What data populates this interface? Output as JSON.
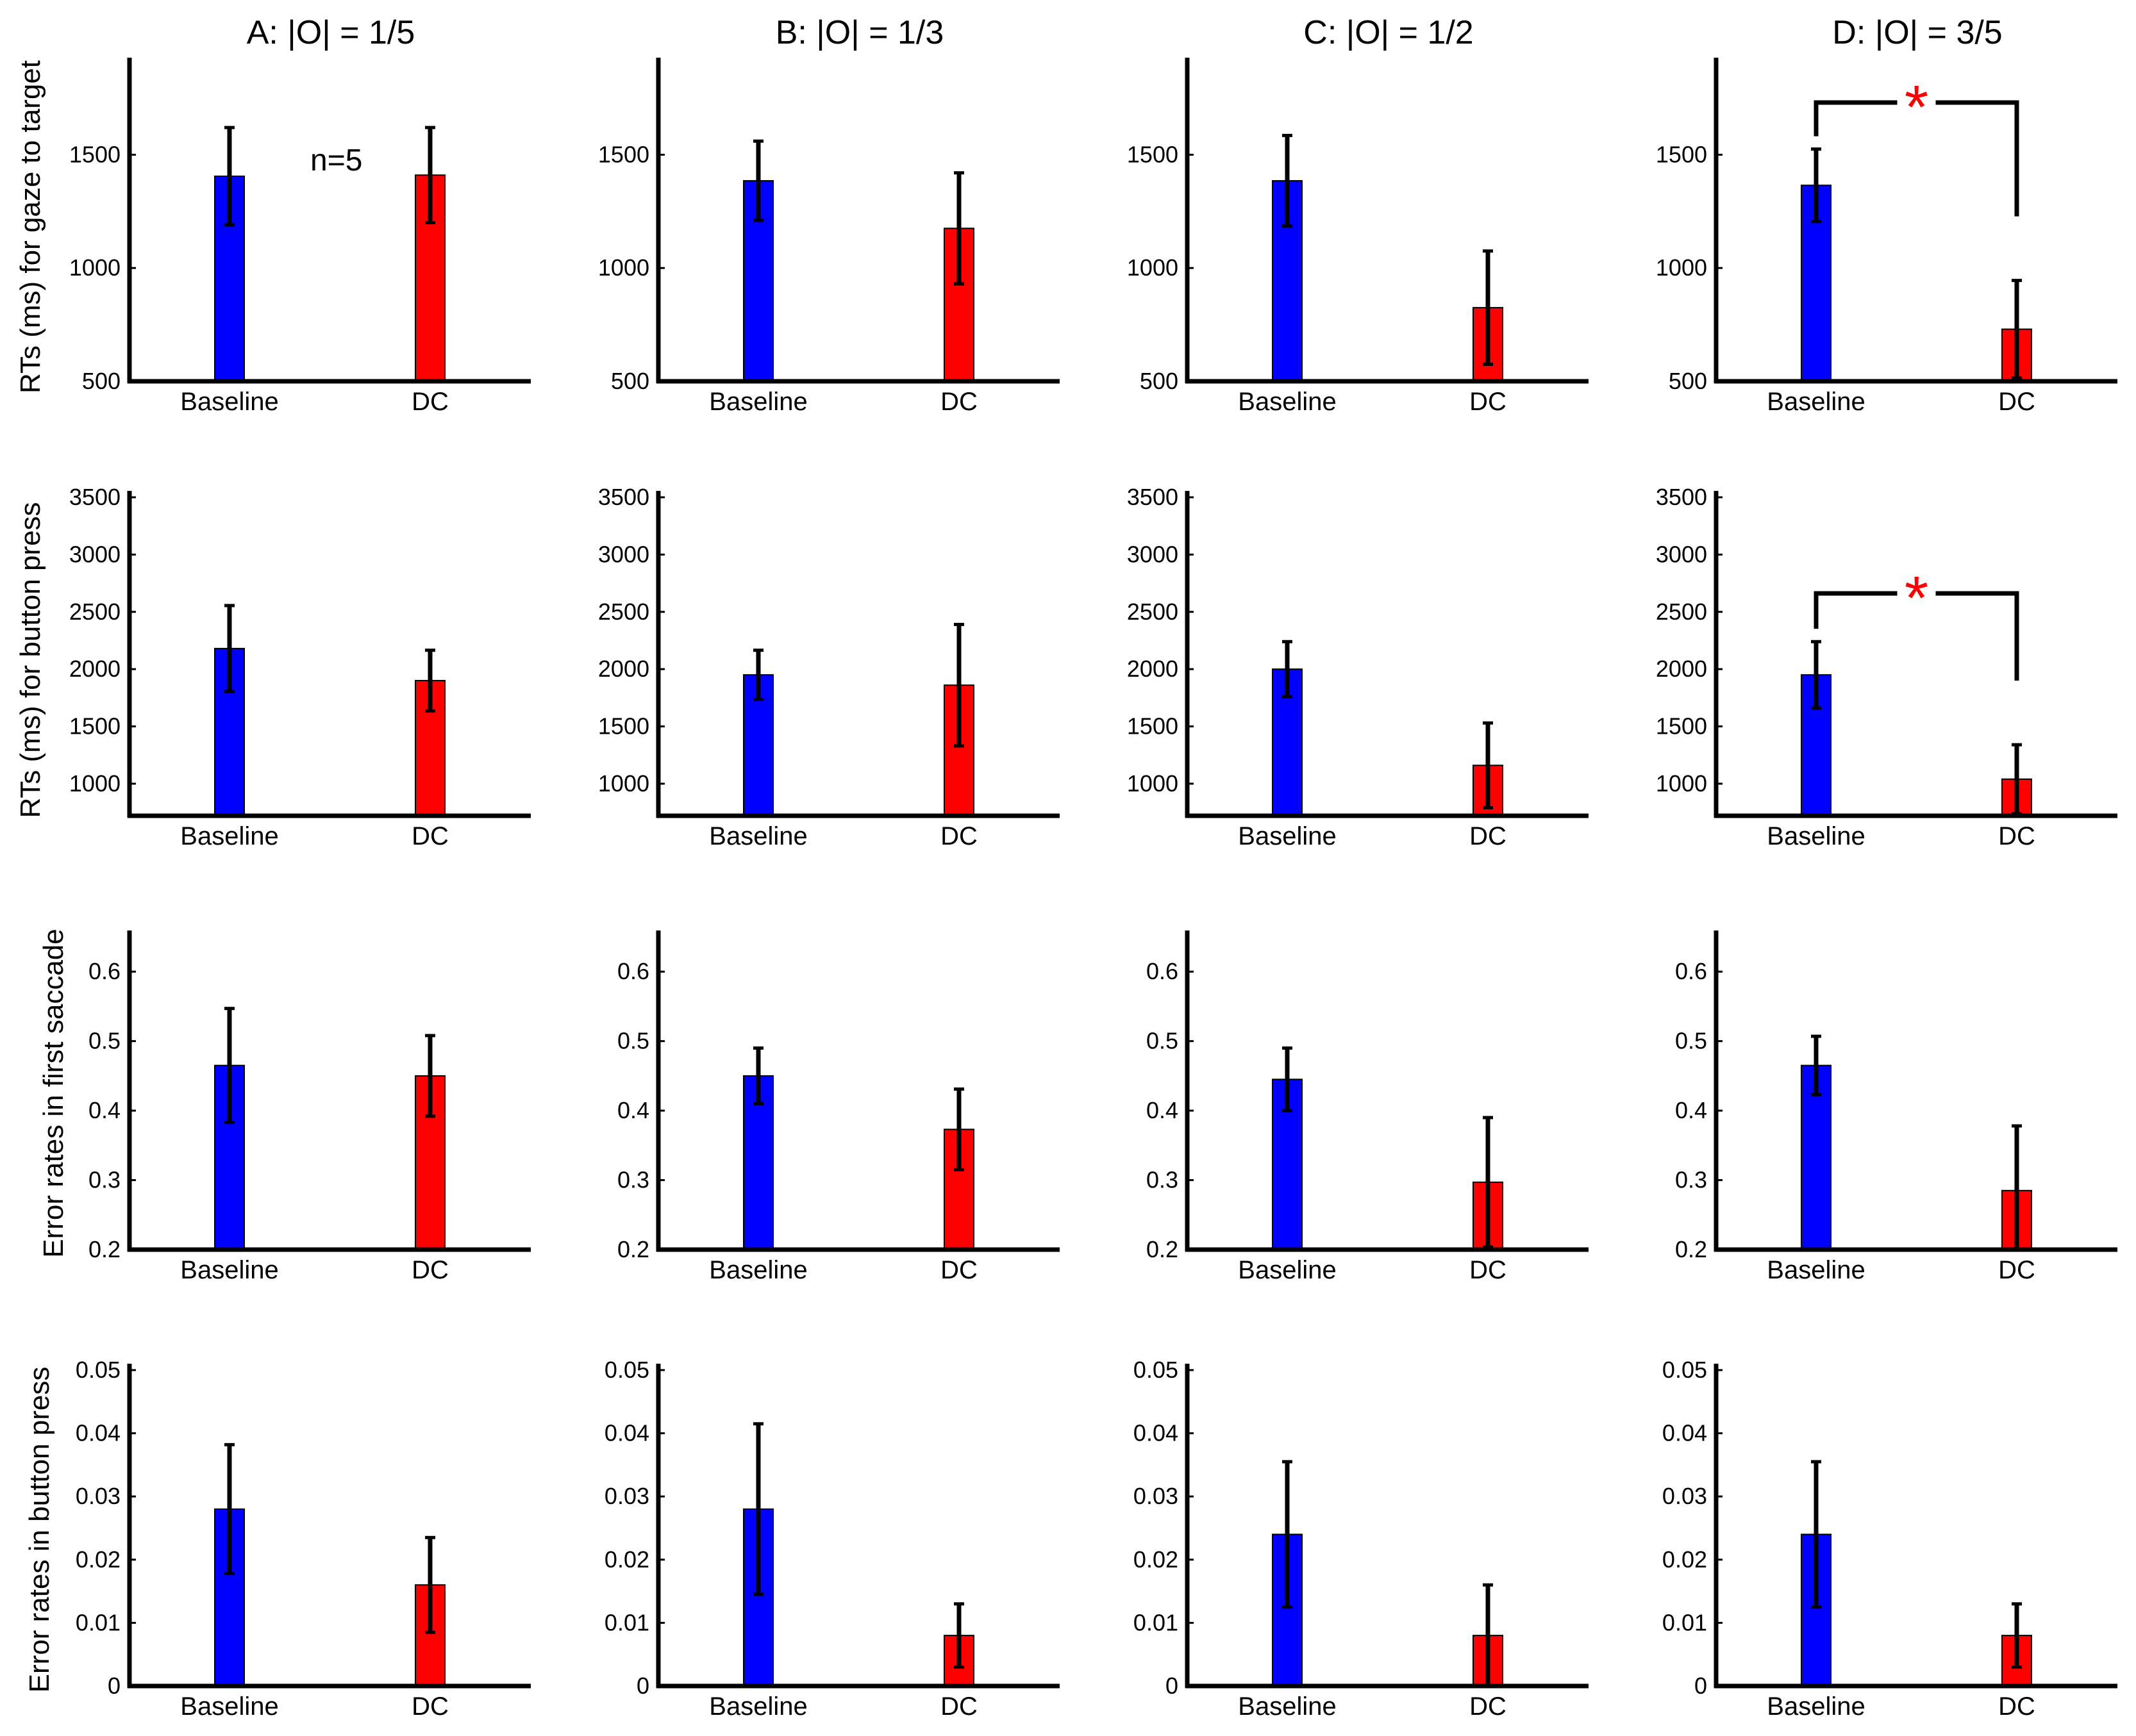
{
  "figure": {
    "column_titles": [
      "A: |O| = 1/5",
      "B: |O| = 1/3",
      "C: |O| = 1/2",
      "D: |O| = 3/5"
    ],
    "row_labels": [
      "RTs (ms) for gaze to target",
      "RTs (ms) for button press",
      "Error rates in first saccade",
      "Error rates in button press"
    ],
    "annotation": "n=5",
    "significance_marker": "*",
    "colors": {
      "baseline": "#0000ff",
      "dc": "#ff0000",
      "axis": "#000000",
      "significance": "#ff0000"
    }
  },
  "chart_data": [
    {
      "type": "bar",
      "row": 0,
      "col": 0,
      "title": "A: |O| = 1/5",
      "ylabel": "RTs (ms) for gaze to target",
      "categories": [
        "Baseline",
        "DC"
      ],
      "values": [
        1405,
        1410
      ],
      "errors": [
        215,
        210
      ],
      "ylim": [
        500,
        1900
      ],
      "yticks": [
        500,
        1000,
        1500
      ],
      "ytick_labels": [
        "500",
        "1000",
        "1500"
      ],
      "significant": false
    },
    {
      "type": "bar",
      "row": 0,
      "col": 1,
      "title": "B: |O| = 1/3",
      "ylabel": "RTs (ms) for gaze to target",
      "categories": [
        "Baseline",
        "DC"
      ],
      "values": [
        1385,
        1175
      ],
      "errors": [
        175,
        245
      ],
      "ylim": [
        500,
        1900
      ],
      "yticks": [
        500,
        1000,
        1500
      ],
      "ytick_labels": [
        "500",
        "1000",
        "1500"
      ],
      "significant": false
    },
    {
      "type": "bar",
      "row": 0,
      "col": 2,
      "title": "C: |O| = 1/2",
      "ylabel": "RTs (ms) for gaze to target",
      "categories": [
        "Baseline",
        "DC"
      ],
      "values": [
        1385,
        825
      ],
      "errors": [
        200,
        250
      ],
      "ylim": [
        500,
        1900
      ],
      "yticks": [
        500,
        1000,
        1500
      ],
      "ytick_labels": [
        "500",
        "1000",
        "1500"
      ],
      "significant": false
    },
    {
      "type": "bar",
      "row": 0,
      "col": 3,
      "title": "D: |O| = 3/5",
      "ylabel": "RTs (ms) for gaze to target",
      "categories": [
        "Baseline",
        "DC"
      ],
      "values": [
        1365,
        730
      ],
      "errors": [
        160,
        215
      ],
      "ylim": [
        500,
        1900
      ],
      "yticks": [
        500,
        1000,
        1500
      ],
      "ytick_labels": [
        "500",
        "1000",
        "1500"
      ],
      "significant": true
    },
    {
      "type": "bar",
      "row": 1,
      "col": 0,
      "title": "A: |O| = 1/5",
      "ylabel": "RTs (ms) for button press",
      "categories": [
        "Baseline",
        "DC"
      ],
      "values": [
        2180,
        1900
      ],
      "errors": [
        375,
        265
      ],
      "ylim": [
        720,
        3500
      ],
      "yticks": [
        1000,
        1500,
        2000,
        2500,
        3000,
        3500
      ],
      "ytick_labels": [
        "1000",
        "1500",
        "2000",
        "2500",
        "3000",
        "3500"
      ],
      "significant": false
    },
    {
      "type": "bar",
      "row": 1,
      "col": 1,
      "title": "B: |O| = 1/3",
      "ylabel": "RTs (ms) for button press",
      "categories": [
        "Baseline",
        "DC"
      ],
      "values": [
        1950,
        1860
      ],
      "errors": [
        215,
        530
      ],
      "ylim": [
        720,
        3500
      ],
      "yticks": [
        1000,
        1500,
        2000,
        2500,
        3000,
        3500
      ],
      "ytick_labels": [
        "1000",
        "1500",
        "2000",
        "2500",
        "3000",
        "3500"
      ],
      "significant": false
    },
    {
      "type": "bar",
      "row": 1,
      "col": 2,
      "title": "C: |O| = 1/2",
      "ylabel": "RTs (ms) for button press",
      "categories": [
        "Baseline",
        "DC"
      ],
      "values": [
        2000,
        1160
      ],
      "errors": [
        240,
        370
      ],
      "ylim": [
        720,
        3500
      ],
      "yticks": [
        1000,
        1500,
        2000,
        2500,
        3000,
        3500
      ],
      "ytick_labels": [
        "1000",
        "1500",
        "2000",
        "2500",
        "3000",
        "3500"
      ],
      "significant": false
    },
    {
      "type": "bar",
      "row": 1,
      "col": 3,
      "title": "D: |O| = 3/5",
      "ylabel": "RTs (ms) for button press",
      "categories": [
        "Baseline",
        "DC"
      ],
      "values": [
        1950,
        1040
      ],
      "errors": [
        290,
        300
      ],
      "ylim": [
        720,
        3500
      ],
      "yticks": [
        1000,
        1500,
        2000,
        2500,
        3000,
        3500
      ],
      "ytick_labels": [
        "1000",
        "1500",
        "2000",
        "2500",
        "3000",
        "3500"
      ],
      "significant": true
    },
    {
      "type": "bar",
      "row": 2,
      "col": 0,
      "title": "A: |O| = 1/5",
      "ylabel": "Error rates in first saccade",
      "categories": [
        "Baseline",
        "DC"
      ],
      "values": [
        0.465,
        0.45
      ],
      "errors": [
        0.082,
        0.058
      ],
      "ylim": [
        0.2,
        0.65
      ],
      "yticks": [
        0.2,
        0.3,
        0.4,
        0.5,
        0.6
      ],
      "ytick_labels": [
        "0.2",
        "0.3",
        "0.4",
        "0.5",
        "0.6"
      ],
      "significant": false
    },
    {
      "type": "bar",
      "row": 2,
      "col": 1,
      "title": "B: |O| = 1/3",
      "ylabel": "Error rates in first saccade",
      "categories": [
        "Baseline",
        "DC"
      ],
      "values": [
        0.45,
        0.373
      ],
      "errors": [
        0.04,
        0.058
      ],
      "ylim": [
        0.2,
        0.65
      ],
      "yticks": [
        0.2,
        0.3,
        0.4,
        0.5,
        0.6
      ],
      "ytick_labels": [
        "0.2",
        "0.3",
        "0.4",
        "0.5",
        "0.6"
      ],
      "significant": false
    },
    {
      "type": "bar",
      "row": 2,
      "col": 2,
      "title": "C: |O| = 1/2",
      "ylabel": "Error rates in first saccade",
      "categories": [
        "Baseline",
        "DC"
      ],
      "values": [
        0.445,
        0.297
      ],
      "errors": [
        0.045,
        0.093
      ],
      "ylim": [
        0.2,
        0.65
      ],
      "yticks": [
        0.2,
        0.3,
        0.4,
        0.5,
        0.6
      ],
      "ytick_labels": [
        "0.2",
        "0.3",
        "0.4",
        "0.5",
        "0.6"
      ],
      "significant": false
    },
    {
      "type": "bar",
      "row": 2,
      "col": 3,
      "title": "D: |O| = 3/5",
      "ylabel": "Error rates in first saccade",
      "categories": [
        "Baseline",
        "DC"
      ],
      "values": [
        0.465,
        0.285
      ],
      "errors": [
        0.042,
        0.093
      ],
      "ylim": [
        0.2,
        0.65
      ],
      "yticks": [
        0.2,
        0.3,
        0.4,
        0.5,
        0.6
      ],
      "ytick_labels": [
        "0.2",
        "0.3",
        "0.4",
        "0.5",
        "0.6"
      ],
      "significant": false
    },
    {
      "type": "bar",
      "row": 3,
      "col": 0,
      "title": "A: |O| = 1/5",
      "ylabel": "Error rates in button press",
      "categories": [
        "Baseline",
        "DC"
      ],
      "values": [
        0.028,
        0.016
      ],
      "errors": [
        0.0102,
        0.0075
      ],
      "ylim": [
        0,
        0.05
      ],
      "yticks": [
        0,
        0.01,
        0.02,
        0.03,
        0.04,
        0.05
      ],
      "ytick_labels": [
        "0",
        "0.01",
        "0.02",
        "0.03",
        "0.04",
        "0.05"
      ],
      "significant": false
    },
    {
      "type": "bar",
      "row": 3,
      "col": 1,
      "title": "B: |O| = 1/3",
      "ylabel": "Error rates in button press",
      "categories": [
        "Baseline",
        "DC"
      ],
      "values": [
        0.028,
        0.008
      ],
      "errors": [
        0.0135,
        0.005
      ],
      "ylim": [
        0,
        0.05
      ],
      "yticks": [
        0,
        0.01,
        0.02,
        0.03,
        0.04,
        0.05
      ],
      "ytick_labels": [
        "0",
        "0.01",
        "0.02",
        "0.03",
        "0.04",
        "0.05"
      ],
      "significant": false
    },
    {
      "type": "bar",
      "row": 3,
      "col": 2,
      "title": "C: |O| = 1/2",
      "ylabel": "Error rates in button press",
      "categories": [
        "Baseline",
        "DC"
      ],
      "values": [
        0.024,
        0.008
      ],
      "errors": [
        0.0115,
        0.008
      ],
      "ylim": [
        0,
        0.05
      ],
      "yticks": [
        0,
        0.01,
        0.02,
        0.03,
        0.04,
        0.05
      ],
      "ytick_labels": [
        "0",
        "0.01",
        "0.02",
        "0.03",
        "0.04",
        "0.05"
      ],
      "significant": false
    },
    {
      "type": "bar",
      "row": 3,
      "col": 3,
      "title": "D: |O| = 3/5",
      "ylabel": "Error rates in button press",
      "categories": [
        "Baseline",
        "DC"
      ],
      "values": [
        0.024,
        0.008
      ],
      "errors": [
        0.0115,
        0.005
      ],
      "ylim": [
        0,
        0.05
      ],
      "yticks": [
        0,
        0.01,
        0.02,
        0.03,
        0.04,
        0.05
      ],
      "ytick_labels": [
        "0",
        "0.01",
        "0.02",
        "0.03",
        "0.04",
        "0.05"
      ],
      "significant": false
    }
  ]
}
